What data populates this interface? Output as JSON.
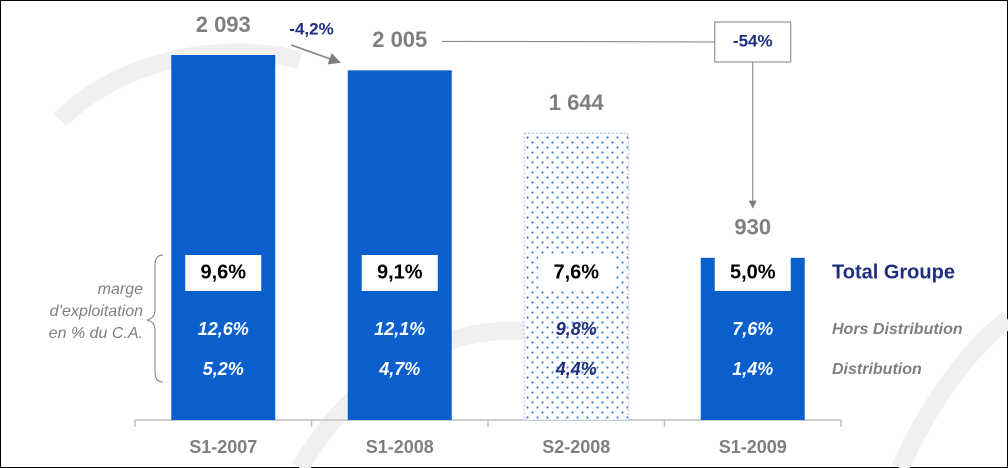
{
  "chart_data": {
    "type": "bar",
    "categories": [
      "S1-2007",
      "S1-2008",
      "S2-2008",
      "S1-2009"
    ],
    "values": [
      2093,
      2005,
      1644,
      930
    ],
    "value_labels": [
      "2 093",
      "2 005",
      "1 644",
      "930"
    ],
    "color": "#0a5fcc",
    "patterned": [
      false,
      false,
      true,
      false
    ],
    "annotations": [
      {
        "text": "-4,2%",
        "from": 0,
        "to": 1
      },
      {
        "text": "-54%",
        "from": 1,
        "to": 3
      }
    ],
    "margin_note": [
      "marge",
      "d’exploitation",
      "en % du C.A."
    ],
    "margins": [
      {
        "name": "Total Groupe",
        "values": [
          9.6,
          9.1,
          7.6,
          5.0
        ],
        "value_labels": [
          "9,6%",
          "9,1%",
          "7,6%",
          "5,0%"
        ]
      },
      {
        "name": "Hors Distribution",
        "values": [
          12.6,
          12.1,
          9.8,
          7.6
        ],
        "value_labels": [
          "12,6%",
          "12,1%",
          "9,8%",
          "7,6%"
        ]
      },
      {
        "name": "Distribution",
        "values": [
          5.2,
          4.7,
          4.4,
          1.4
        ],
        "value_labels": [
          "5,2%",
          "4,7%",
          "4,4%",
          "1,4%"
        ]
      }
    ]
  }
}
